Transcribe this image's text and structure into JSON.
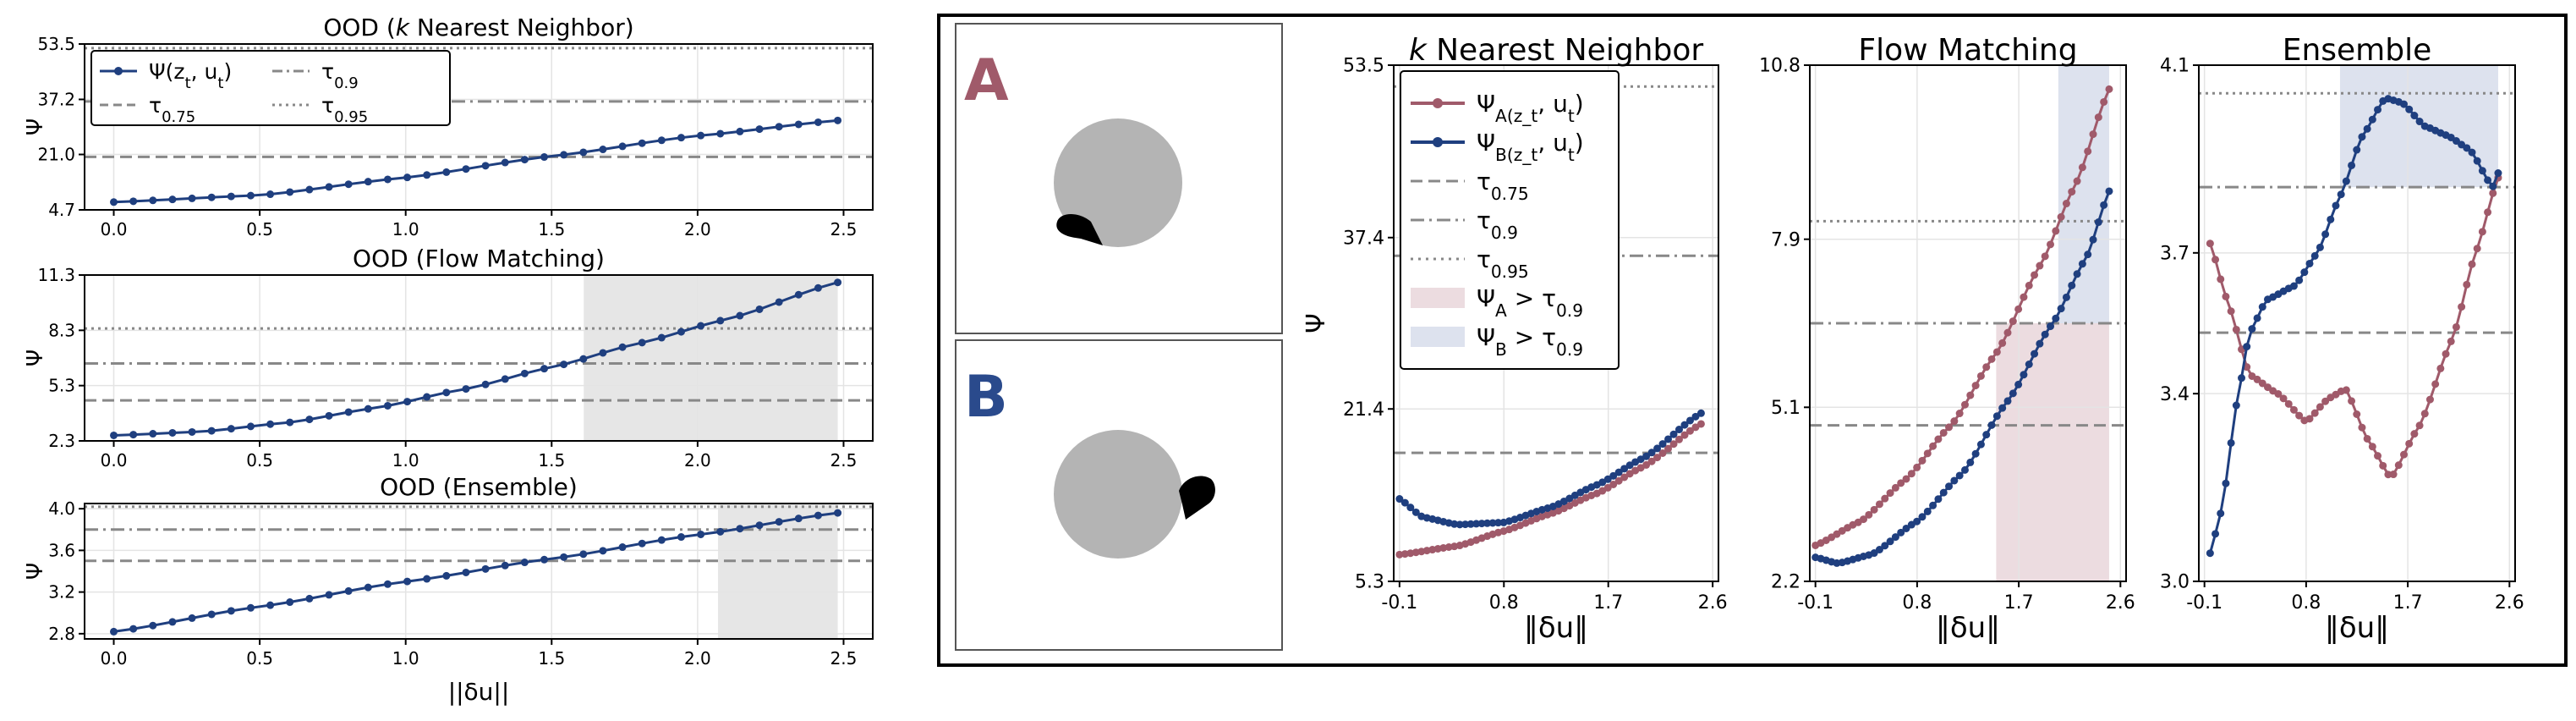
{
  "colors": {
    "blue": "#1f3f7f",
    "red": "#a05a6a",
    "tau": "#888888",
    "shade_gray": "#e6e6e6",
    "shade_red": "#ecdce0",
    "shade_blue": "#dde2ee",
    "disk": "#b4b4b4",
    "label_A": "#a05a6a",
    "label_B": "#2a4a8c"
  },
  "left_panel": {
    "xlabel": "||δu||",
    "legend": {
      "psi": "Ψ(z_t, u_t)",
      "t75": "τ_0.75",
      "t90": "τ_0.9",
      "t95": "τ_0.95"
    }
  },
  "right_panel": {
    "cases": [
      {
        "label": "A",
        "tail": "lower-left"
      },
      {
        "label": "B",
        "tail": "right"
      }
    ],
    "legend": {
      "psiA": "Ψ_A(z_t, u_t)",
      "psiB": "Ψ_B(z_t, u_t)",
      "t75": "τ_0.75",
      "t90": "τ_0.9",
      "t95": "τ_0.95",
      "shadeA": "Ψ_A > τ_0.9",
      "shadeB": "Ψ_B > τ_0.9"
    }
  },
  "chart_data": [
    {
      "id": "left_knn",
      "type": "line",
      "title": "OOD (k Nearest Neighbor)",
      "ylabel": "Ψ",
      "xlabel": "",
      "xlim": [
        -0.1,
        2.6
      ],
      "ylim": [
        4.7,
        53.5
      ],
      "xticks": [
        "0.0",
        "0.5",
        "1.0",
        "1.5",
        "2.0",
        "2.5"
      ],
      "yticks": [
        "4.7",
        "21.0",
        "37.2",
        "53.5"
      ],
      "thresholds": {
        "t75": 20.3,
        "t90": 36.6,
        "t95": 52.3
      },
      "shade": [],
      "series": [
        {
          "name": "Ψ(z_t, u_t)",
          "x": [
            0,
            0.5,
            1.0,
            1.5,
            2.0,
            2.48
          ],
          "y": [
            7.0,
            9.0,
            14.2,
            20.5,
            26.5,
            31.0
          ]
        }
      ]
    },
    {
      "id": "left_flow",
      "type": "line",
      "title": "OOD (Flow Matching)",
      "ylabel": "Ψ",
      "xlabel": "",
      "xlim": [
        -0.1,
        2.6
      ],
      "ylim": [
        2.3,
        11.3
      ],
      "xticks": [
        "0.0",
        "0.5",
        "1.0",
        "1.5",
        "2.0",
        "2.5"
      ],
      "yticks": [
        "2.3",
        "5.3",
        "8.3",
        "11.3"
      ],
      "thresholds": {
        "t75": 4.5,
        "t90": 6.5,
        "t95": 8.4
      },
      "shade": [
        [
          1.61,
          2.48
        ]
      ],
      "series": [
        {
          "name": "Ψ(z_t, u_t)",
          "x": [
            0,
            0.3,
            0.6,
            0.9,
            1.2,
            1.5,
            1.8,
            2.1,
            2.48
          ],
          "y": [
            2.6,
            2.8,
            3.3,
            4.1,
            5.1,
            6.3,
            7.6,
            8.9,
            10.9
          ]
        }
      ]
    },
    {
      "id": "left_ens",
      "type": "line",
      "title": "OOD (Ensemble)",
      "ylabel": "Ψ",
      "xlabel": "||δu||",
      "xlim": [
        -0.1,
        2.6
      ],
      "ylim": [
        2.75,
        4.05
      ],
      "xticks": [
        "0.0",
        "0.5",
        "1.0",
        "1.5",
        "2.0",
        "2.5"
      ],
      "yticks": [
        "2.8",
        "3.2",
        "3.6",
        "4.0"
      ],
      "thresholds": {
        "t75": 3.5,
        "t90": 3.8,
        "t95": 4.02
      },
      "shade": [
        [
          2.07,
          2.48
        ]
      ],
      "series": [
        {
          "name": "Ψ(z_t, u_t)",
          "x": [
            0,
            0.5,
            1.0,
            1.5,
            2.0,
            2.48
          ],
          "y": [
            2.82,
            3.06,
            3.3,
            3.52,
            3.75,
            3.96
          ]
        }
      ]
    },
    {
      "id": "right_knn",
      "type": "line",
      "title": "k Nearest Neighbor",
      "ylabel": "Ψ",
      "xlabel": "‖δu‖",
      "xlim": [
        -0.15,
        2.65
      ],
      "ylim": [
        5.3,
        53.5
      ],
      "xticks": [
        "-0.1",
        "0.8",
        "1.7",
        "2.6"
      ],
      "yticks": [
        "5.3",
        "21.4",
        "37.4",
        "53.5"
      ],
      "thresholds": {
        "t75": 17.3,
        "t90": 35.7,
        "t95": 51.5
      },
      "shade": [],
      "series": [
        {
          "name": "Ψ_A(z_t, u_t)",
          "x": [
            -0.1,
            0.4,
            0.8,
            1.2,
            1.6,
            2.0,
            2.5
          ],
          "y": [
            7.8,
            8.6,
            10.0,
            11.6,
            13.5,
            16.0,
            20.0
          ]
        },
        {
          "name": "Ψ_B(z_t, u_t)",
          "x": [
            -0.1,
            0.1,
            0.4,
            0.8,
            1.2,
            1.6,
            2.0,
            2.5
          ],
          "y": [
            13.0,
            11.3,
            10.6,
            10.8,
            12.2,
            14.3,
            16.8,
            21.0
          ]
        }
      ]
    },
    {
      "id": "right_flow",
      "type": "line",
      "title": "Flow Matching",
      "ylabel": "",
      "xlabel": "‖δu‖",
      "xlim": [
        -0.15,
        2.65
      ],
      "ylim": [
        2.2,
        10.8
      ],
      "xticks": [
        "-0.1",
        "0.8",
        "1.7",
        "2.6"
      ],
      "yticks": [
        "2.2",
        "5.1",
        "7.9",
        "10.8"
      ],
      "thresholds": {
        "t75": 4.8,
        "t90": 6.5,
        "t95": 8.2
      },
      "shade_A": [
        1.5,
        2.5
      ],
      "shade_B": [
        2.05,
        2.5
      ],
      "series": [
        {
          "name": "Ψ_A(z_t, u_t)",
          "x": [
            -0.1,
            0.3,
            0.7,
            1.1,
            1.5,
            1.9,
            2.2,
            2.5
          ],
          "y": [
            2.8,
            3.2,
            3.9,
            4.8,
            6.0,
            7.5,
            8.8,
            10.4
          ]
        },
        {
          "name": "Ψ_B(z_t, u_t)",
          "x": [
            -0.1,
            0.1,
            0.4,
            0.8,
            1.2,
            1.6,
            2.0,
            2.3,
            2.5
          ],
          "y": [
            2.6,
            2.5,
            2.65,
            3.2,
            4.0,
            5.2,
            6.5,
            7.6,
            8.7
          ]
        }
      ]
    },
    {
      "id": "right_ens",
      "type": "line",
      "title": "Ensemble",
      "ylabel": "",
      "xlabel": "‖δu‖",
      "xlim": [
        -0.15,
        2.65
      ],
      "ylim": [
        3.0,
        4.1
      ],
      "xticks": [
        "-0.1",
        "0.8",
        "1.7",
        "2.6"
      ],
      "yticks": [
        "3.0",
        "3.4",
        "3.7",
        "4.1"
      ],
      "thresholds": {
        "t75": 3.53,
        "t90": 3.84,
        "t95": 4.04
      },
      "shade_B": [
        1.1,
        2.5
      ],
      "series": [
        {
          "name": "Ψ_A(z_t, u_t)",
          "x": [
            -0.05,
            0.1,
            0.3,
            0.55,
            0.8,
            1.0,
            1.15,
            1.35,
            1.55,
            1.8,
            2.1,
            2.3,
            2.5
          ],
          "y": [
            3.72,
            3.6,
            3.44,
            3.4,
            3.34,
            3.39,
            3.41,
            3.3,
            3.22,
            3.33,
            3.52,
            3.7,
            3.86
          ]
        },
        {
          "name": "Ψ_B(z_t, u_t)",
          "x": [
            -0.05,
            0.05,
            0.2,
            0.3,
            0.45,
            0.7,
            0.9,
            1.1,
            1.3,
            1.5,
            1.65,
            1.85,
            2.05,
            2.25,
            2.45,
            2.5
          ],
          "y": [
            3.06,
            3.15,
            3.4,
            3.53,
            3.6,
            3.63,
            3.7,
            3.82,
            3.95,
            4.03,
            4.02,
            3.97,
            3.95,
            3.92,
            3.84,
            3.87
          ]
        }
      ]
    }
  ]
}
